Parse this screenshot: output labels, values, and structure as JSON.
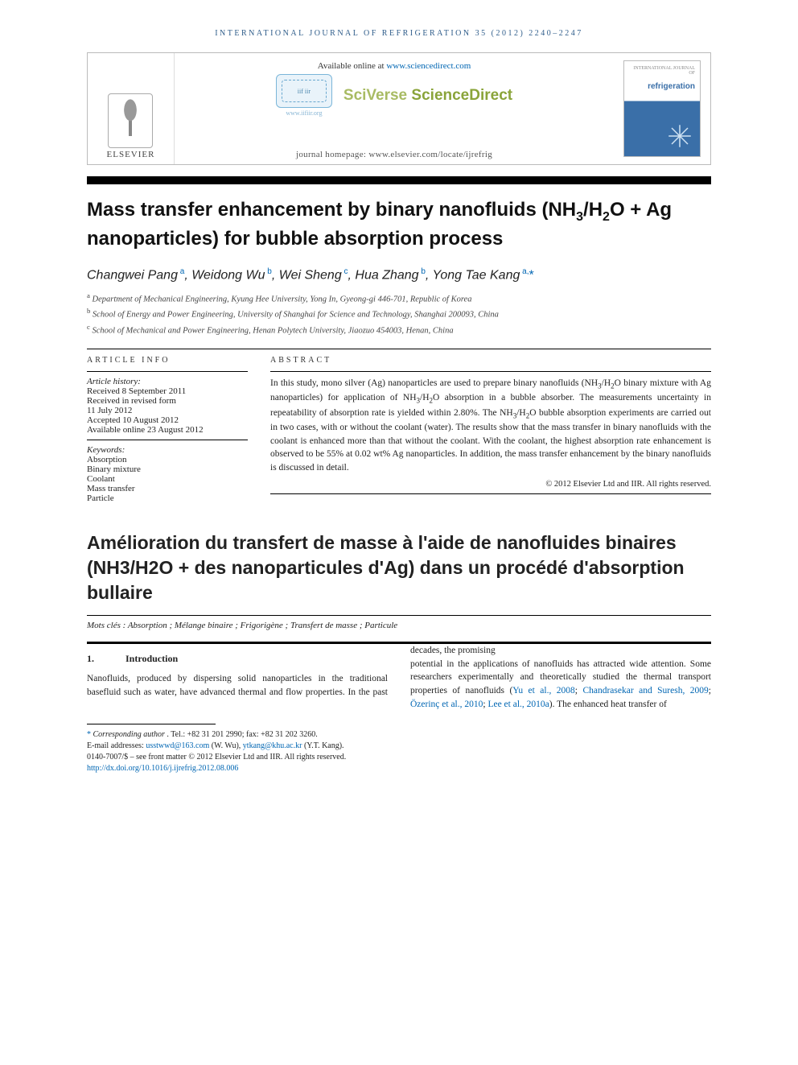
{
  "running_head": "INTERNATIONAL JOURNAL OF REFRIGERATION 35 (2012) 2240–2247",
  "banner": {
    "available_prefix": "Available online at ",
    "available_url": "www.sciencedirect.com",
    "brand_sci": "SciVerse",
    "brand_sd": "ScienceDirect",
    "iir_url": "www.iifiir.org",
    "iif_badge": "iif iir",
    "journal_home_prefix": "journal homepage: ",
    "journal_home_url": "www.elsevier.com/locate/ijrefrig",
    "elsevier": "ELSEVIER",
    "cover_masthead": "INTERNATIONAL JOURNAL OF",
    "cover_title": "refrigeration"
  },
  "title_html": "Mass transfer enhancement by binary nanofluids (NH<sub>3</sub>/H<sub>2</sub>O + Ag nanoparticles) for bubble absorption process",
  "authors_html": "Changwei Pang<sup> a</sup>, Weidong Wu<sup> b</sup>, Wei Sheng<sup> c</sup>, Hua Zhang<sup> b</sup>, Yong Tae Kang<sup> a,</sup><span class=\"star\">*</span>",
  "affiliations": [
    {
      "sup": "a",
      "text": "Department of Mechanical Engineering, Kyung Hee University, Yong In, Gyeong-gi 446-701, Republic of Korea"
    },
    {
      "sup": "b",
      "text": "School of Energy and Power Engineering, University of Shanghai for Science and Technology, Shanghai 200093, China"
    },
    {
      "sup": "c",
      "text": "School of Mechanical and Power Engineering, Henan Polytech University, Jiaozuo 454003, Henan, China"
    }
  ],
  "info": {
    "head": "ARTICLE INFO",
    "history_label": "Article history:",
    "history": [
      "Received 8 September 2011",
      "Received in revised form",
      "11 July 2012",
      "Accepted 10 August 2012",
      "Available online 23 August 2012"
    ],
    "keywords_label": "Keywords:",
    "keywords": [
      "Absorption",
      "Binary mixture",
      "Coolant",
      "Mass transfer",
      "Particle"
    ]
  },
  "abstract": {
    "head": "ABSTRACT",
    "text_html": "In this study, mono silver (Ag) nanoparticles are used to prepare binary nanofluids (NH<sub>3</sub>/H<sub>2</sub>O binary mixture with Ag nanoparticles) for application of NH<sub>3</sub>/H<sub>2</sub>O absorption in a bubble absorber. The measurements uncertainty in repeatability of absorption rate is yielded within 2.80%. The NH<sub>3</sub>/H<sub>2</sub>O bubble absorption experiments are carried out in two cases, with or without the coolant (water). The results show that the mass transfer in binary nanofluids with the coolant is enhanced more than that without the coolant. With the coolant, the highest absorption rate enhancement is observed to be 55% at 0.02 wt% Ag nanoparticles. In addition, the mass transfer enhancement by the binary nanofluids is discussed in detail.",
    "copyright": "© 2012 Elsevier Ltd and IIR. All rights reserved."
  },
  "fr_title": "Amélioration du transfert de masse à l'aide de nanofluides binaires (NH3/H2O + des nanoparticules d'Ag) dans un procédé d'absorption bullaire",
  "mots": {
    "label": "Mots clés : ",
    "text": "Absorption ; Mélange binaire ; Frigorigène ; Transfert de masse ; Particule"
  },
  "intro": {
    "num": "1.",
    "head": "Introduction",
    "left": "Nanofluids, produced by dispersing solid nanoparticles in the traditional basefluid such as water, have advanced thermal and flow properties. In the past decades, the promising",
    "right_pre": "potential in the applications of nanofluids has attracted wide attention. Some researchers experimentally and theoretically studied the thermal transport properties of nanofluids (",
    "links": [
      "Yu et al., 2008",
      "Chandrasekar and Suresh, 2009",
      "Özerinç et al., 2010",
      "Lee et al., 2010a"
    ],
    "right_post": "). The enhanced heat transfer of"
  },
  "footnotes": {
    "corr_label": "Corresponding author",
    "corr_text": ". Tel.: +82 31 201 2990; fax: +82 31 202 3260.",
    "email_label": "E-mail addresses: ",
    "emails": [
      {
        "addr": "usstwwd@163.com",
        "who": " (W. Wu), "
      },
      {
        "addr": "ytkang@khu.ac.kr",
        "who": " (Y.T. Kang)."
      }
    ],
    "issn_line": "0140-7007/$ – see front matter © 2012 Elsevier Ltd and IIR. All rights reserved.",
    "doi": "http://dx.doi.org/10.1016/j.ijrefrig.2012.08.006"
  },
  "colors": {
    "link": "#0066b3",
    "head_blue": "#2e5c8a",
    "sd_green": "#8aa43a",
    "cover_blue": "#3a6fa8"
  }
}
